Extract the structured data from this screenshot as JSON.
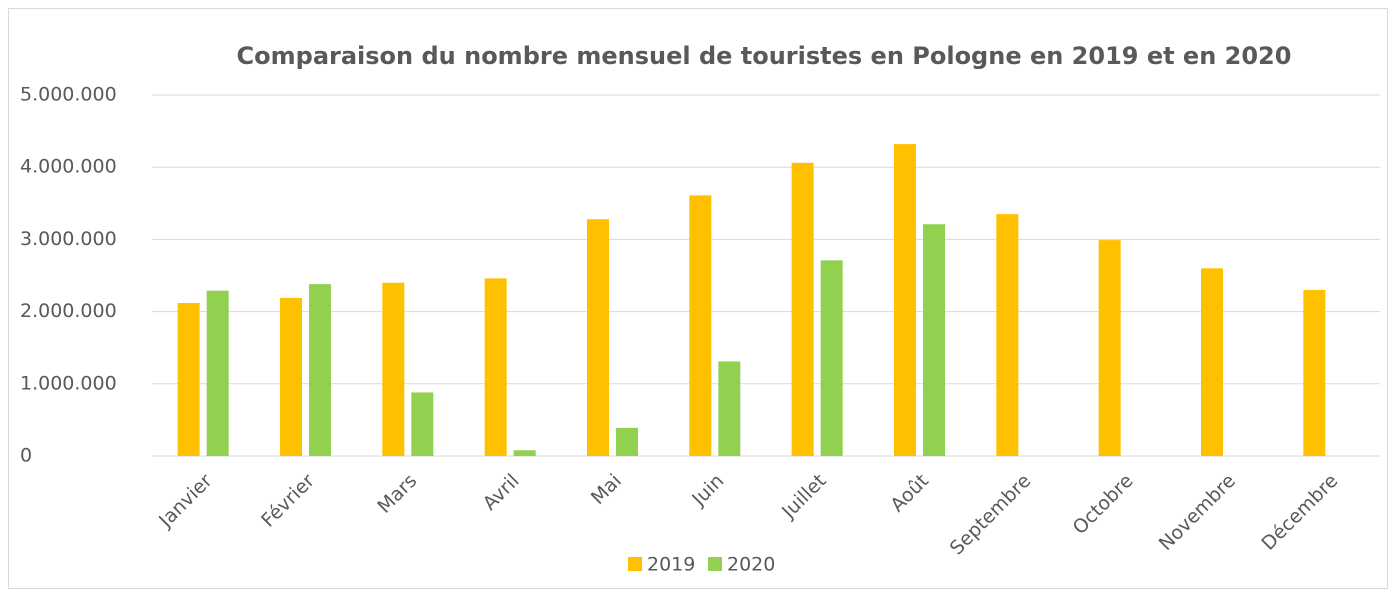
{
  "chart_data": {
    "type": "bar",
    "title": "Comparaison du nombre mensuel de touristes en Pologne en 2019 et en 2020",
    "categories": [
      "Janvier",
      "Février",
      "Mars",
      "Avril",
      "Mai",
      "Juin",
      "Juillet",
      "Août",
      "Septembre",
      "Octobre",
      "Novembre",
      "Décembre"
    ],
    "series": [
      {
        "name": "2019",
        "color": "#ffc000",
        "values": [
          2120000,
          2190000,
          2400000,
          2460000,
          3280000,
          3610000,
          4060000,
          4320000,
          3350000,
          2990000,
          2600000,
          2300000
        ]
      },
      {
        "name": "2020",
        "color": "#92d050",
        "values": [
          2290000,
          2380000,
          880000,
          80000,
          390000,
          1310000,
          2710000,
          3210000,
          null,
          null,
          null,
          null
        ]
      }
    ],
    "ylim": [
      0,
      5000000
    ],
    "yticks": [
      0,
      {
        "value": 1000000,
        "label": "1.000.000"
      },
      {
        "value": 2000000,
        "label": "2.000.000"
      },
      {
        "value": 3000000,
        "label": "3.000.000"
      },
      {
        "value": 4000000,
        "label": "4.000.000"
      },
      {
        "value": 5000000,
        "label": "5.000.000"
      }
    ],
    "grid": true,
    "legend": "bottom"
  }
}
